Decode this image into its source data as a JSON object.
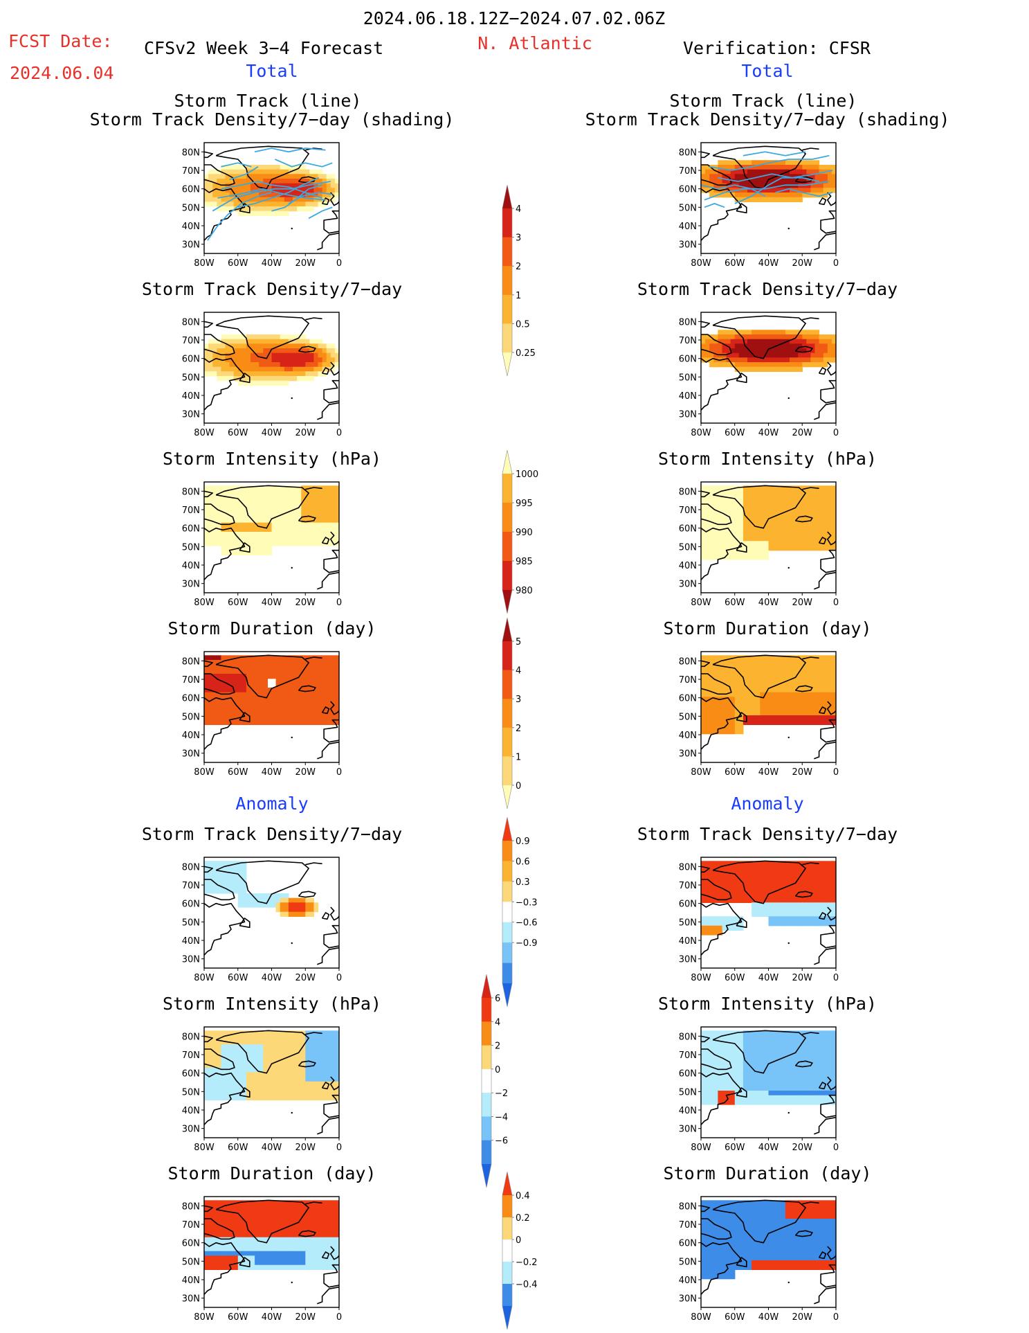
{
  "header": {
    "date_range": "2024.06.18.12Z−2024.07.02.06Z",
    "fcst_label": "FCST Date:",
    "fcst_date": "2024.06.04",
    "model": "CFSv2 Week 3−4 Forecast",
    "region": "N. Atlantic",
    "verification": "Verification: CFSR"
  },
  "sections": {
    "total": "Total",
    "anomaly": "Anomaly"
  },
  "panel_titles": {
    "track1": "Storm Track (line)",
    "track2": "Storm Track Density/7−day (shading)",
    "density": "Storm Track Density/7−day",
    "intensity": "Storm Intensity (hPa)",
    "duration": "Storm Duration (day)"
  },
  "axes": {
    "lat_ticks": [
      "80N",
      "70N",
      "60N",
      "50N",
      "40N",
      "30N"
    ],
    "lon_ticks": [
      "80W",
      "60W",
      "40W",
      "20W",
      "0"
    ]
  },
  "colorbars": [
    {
      "labels": [
        "4",
        "3",
        "2",
        "1",
        "0.5",
        "0.25"
      ],
      "colors": [
        "#a01010",
        "#d82418",
        "#f05a14",
        "#f88c14",
        "#fcb430",
        "#fcd878",
        "#fffcb8"
      ]
    },
    {
      "labels": [
        "1000",
        "995",
        "990",
        "985",
        "980"
      ],
      "colors": [
        "#fffcb8",
        "#fcb430",
        "#f88c14",
        "#f05a14",
        "#d82418",
        "#a01010"
      ]
    },
    {
      "labels": [
        "5",
        "4",
        "3",
        "2",
        "1",
        "0"
      ],
      "colors": [
        "#a01010",
        "#d82418",
        "#f05a14",
        "#f88c14",
        "#fcb430",
        "#fcd878",
        "#fffcb8"
      ]
    },
    {
      "labels": [
        "0.9",
        "0.6",
        "0.3",
        "−0.3",
        "−0.6",
        "−0.9"
      ],
      "colors": [
        "#f03a14",
        "#f88c14",
        "#fcb430",
        "#fcd878",
        "#ffffff",
        "#b4ecfc",
        "#78c4f8",
        "#3c8ce8",
        "#1e64e0"
      ]
    },
    {
      "labels": [
        "6",
        "4",
        "2",
        "0",
        "−2",
        "−4",
        "−6"
      ],
      "colors": [
        "#d82418",
        "#f03a14",
        "#f88c14",
        "#fcd878",
        "#ffffff",
        "#b4ecfc",
        "#78c4f8",
        "#3c8ce8",
        "#1e64e0"
      ]
    },
    {
      "labels": [
        "0.4",
        "0.2",
        "0",
        "−0.2",
        "−0.4"
      ],
      "colors": [
        "#f03a14",
        "#f88c14",
        "#fcd878",
        "#ffffff",
        "#b4ecfc",
        "#3c8ce8",
        "#1e64e0"
      ]
    }
  ]
}
